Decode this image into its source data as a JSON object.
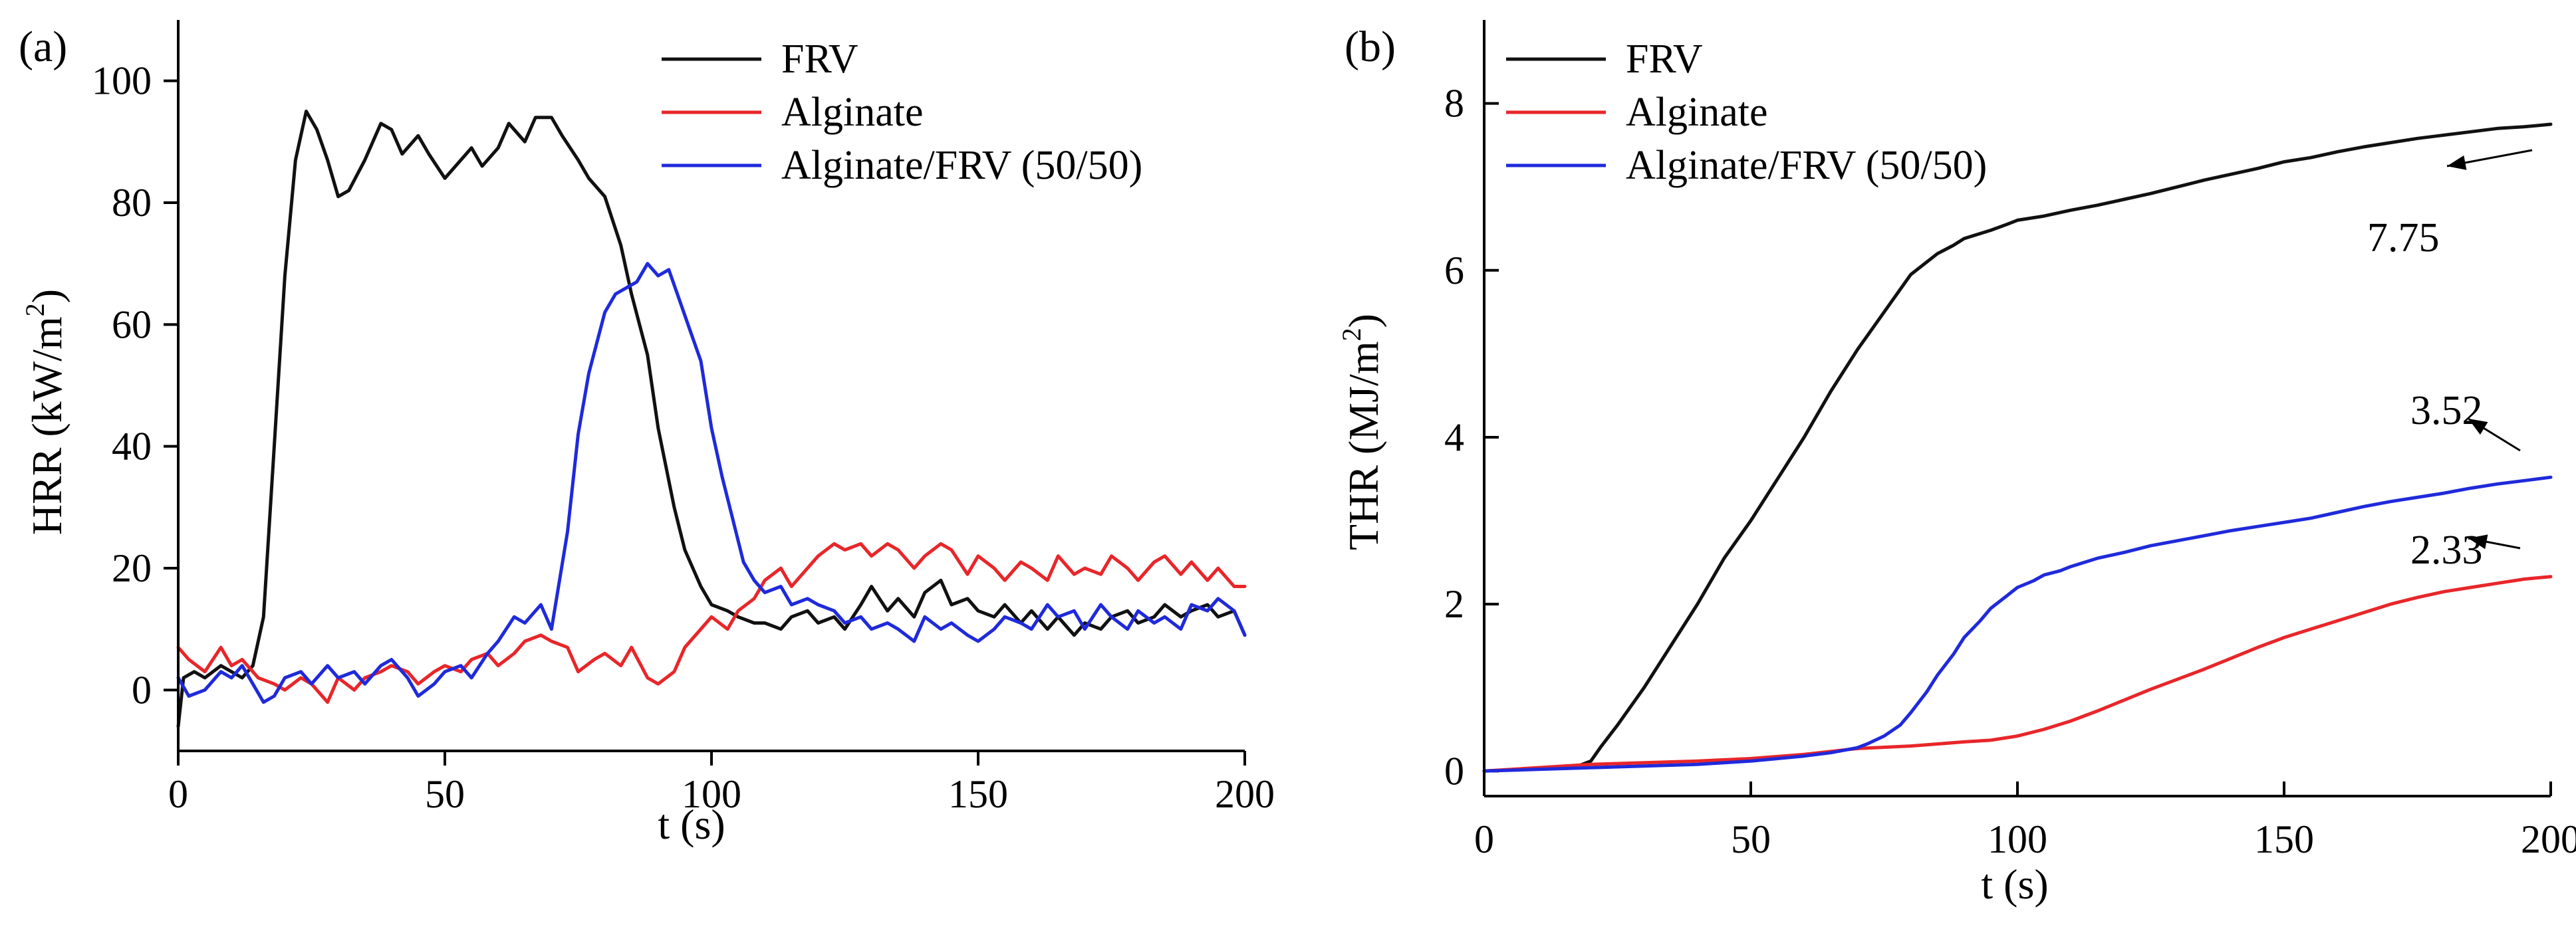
{
  "chart_data": [
    {
      "type": "line",
      "panel_label": "(a)",
      "xlabel": "t (s)",
      "ylabel": "HRR (kW/m²)",
      "ylabel_main": "HRR (kW/m",
      "ylabel_sup": "2",
      "ylabel_close": ")",
      "xlim": [
        0,
        200
      ],
      "ylim": [
        -10,
        110
      ],
      "xticks": [
        0,
        50,
        100,
        150,
        200
      ],
      "yticks": [
        0,
        20,
        40,
        60,
        80,
        100
      ],
      "legend_position": "top-center",
      "series": [
        {
          "name": "FRV",
          "color": "#111111",
          "x": [
            0,
            1,
            3,
            5,
            8,
            10,
            12,
            14,
            16,
            18,
            20,
            22,
            24,
            26,
            28,
            30,
            32,
            35,
            38,
            40,
            42,
            45,
            47,
            50,
            53,
            55,
            57,
            60,
            62,
            65,
            67,
            70,
            72,
            75,
            77,
            80,
            83,
            85,
            88,
            90,
            93,
            95,
            98,
            100,
            103,
            105,
            108,
            110,
            113,
            115,
            118,
            120,
            123,
            125,
            128,
            130,
            133,
            135,
            138,
            140,
            143,
            145,
            148,
            150,
            153,
            155,
            158,
            160,
            163,
            165,
            168,
            170,
            173,
            175,
            178,
            180,
            183,
            185,
            188,
            190,
            193,
            195,
            198,
            200
          ],
          "y": [
            -6,
            2,
            3,
            2,
            4,
            3,
            2,
            4,
            12,
            40,
            68,
            87,
            95,
            92,
            87,
            81,
            82,
            87,
            93,
            92,
            88,
            91,
            88,
            84,
            87,
            89,
            86,
            89,
            93,
            90,
            94,
            94,
            91,
            87,
            84,
            81,
            73,
            65,
            55,
            43,
            30,
            23,
            17,
            14,
            13,
            12,
            11,
            11,
            10,
            12,
            13,
            11,
            12,
            10,
            14,
            17,
            13,
            15,
            12,
            16,
            18,
            14,
            15,
            13,
            12,
            14,
            11,
            13,
            10,
            12,
            9,
            11,
            10,
            12,
            13,
            11,
            12,
            14,
            12,
            13,
            14,
            12,
            13,
            9
          ]
        },
        {
          "name": "Alginate",
          "color": "#e8262a",
          "x": [
            0,
            2,
            5,
            8,
            10,
            12,
            15,
            18,
            20,
            23,
            25,
            28,
            30,
            33,
            35,
            38,
            40,
            43,
            45,
            48,
            50,
            53,
            55,
            58,
            60,
            63,
            65,
            68,
            70,
            73,
            75,
            78,
            80,
            83,
            85,
            88,
            90,
            93,
            95,
            98,
            100,
            103,
            105,
            108,
            110,
            113,
            115,
            118,
            120,
            123,
            125,
            128,
            130,
            133,
            135,
            138,
            140,
            143,
            145,
            148,
            150,
            153,
            155,
            158,
            160,
            163,
            165,
            168,
            170,
            173,
            175,
            178,
            180,
            183,
            185,
            188,
            190,
            193,
            195,
            198,
            200
          ],
          "y": [
            7,
            5,
            3,
            7,
            4,
            5,
            2,
            1,
            0,
            2,
            1,
            -2,
            2,
            0,
            2,
            3,
            4,
            3,
            1,
            3,
            4,
            3,
            5,
            6,
            4,
            6,
            8,
            9,
            8,
            7,
            3,
            5,
            6,
            4,
            7,
            2,
            1,
            3,
            7,
            10,
            12,
            10,
            13,
            15,
            18,
            20,
            17,
            20,
            22,
            24,
            23,
            24,
            22,
            24,
            23,
            20,
            22,
            24,
            23,
            19,
            22,
            20,
            18,
            21,
            20,
            18,
            22,
            19,
            20,
            19,
            22,
            20,
            18,
            21,
            22,
            19,
            21,
            18,
            20,
            17,
            17
          ]
        },
        {
          "name": "Alginate/FRV (50/50)",
          "color": "#1f2adb",
          "x": [
            0,
            2,
            5,
            8,
            10,
            12,
            14,
            16,
            18,
            20,
            23,
            25,
            28,
            30,
            33,
            35,
            38,
            40,
            43,
            45,
            48,
            50,
            53,
            55,
            58,
            60,
            63,
            65,
            68,
            70,
            73,
            75,
            77,
            80,
            82,
            84,
            86,
            88,
            90,
            92,
            94,
            96,
            98,
            100,
            102,
            104,
            106,
            108,
            110,
            113,
            115,
            118,
            120,
            123,
            125,
            128,
            130,
            133,
            135,
            138,
            140,
            143,
            145,
            148,
            150,
            153,
            155,
            158,
            160,
            163,
            165,
            168,
            170,
            173,
            175,
            178,
            180,
            183,
            185,
            188,
            190,
            193,
            195,
            198,
            200
          ],
          "y": [
            2,
            -1,
            0,
            3,
            2,
            4,
            1,
            -2,
            -1,
            2,
            3,
            1,
            4,
            2,
            3,
            1,
            4,
            5,
            2,
            -1,
            1,
            3,
            4,
            2,
            6,
            8,
            12,
            11,
            14,
            10,
            26,
            42,
            52,
            62,
            65,
            66,
            67,
            70,
            68,
            69,
            64,
            59,
            54,
            43,
            35,
            28,
            21,
            18,
            16,
            17,
            14,
            15,
            14,
            13,
            11,
            12,
            10,
            11,
            10,
            8,
            12,
            10,
            11,
            9,
            8,
            10,
            12,
            11,
            10,
            14,
            12,
            13,
            10,
            14,
            12,
            10,
            13,
            11,
            12,
            10,
            14,
            13,
            15,
            13,
            9
          ]
        }
      ]
    },
    {
      "type": "line",
      "panel_label": "(b)",
      "xlabel": "t (s)",
      "ylabel": "THR (MJ/m²)",
      "ylabel_main": "THR (MJ/m",
      "ylabel_sup": "2",
      "ylabel_close": ")",
      "xlim": [
        0,
        200
      ],
      "ylim": [
        -0.3,
        9
      ],
      "xticks": [
        0,
        50,
        100,
        150,
        200
      ],
      "yticks": [
        0,
        2,
        4,
        6,
        8
      ],
      "legend_position": "top-left",
      "series": [
        {
          "name": "FRV",
          "color": "#111111",
          "x": [
            0,
            10,
            15,
            18,
            20,
            22,
            25,
            30,
            35,
            40,
            45,
            50,
            55,
            60,
            65,
            70,
            75,
            80,
            85,
            88,
            90,
            92,
            95,
            98,
            100,
            105,
            110,
            115,
            120,
            125,
            130,
            135,
            140,
            145,
            150,
            155,
            160,
            165,
            170,
            175,
            180,
            185,
            190,
            195,
            200
          ],
          "y": [
            0,
            0.03,
            0.05,
            0.07,
            0.12,
            0.3,
            0.55,
            1.0,
            1.5,
            2.0,
            2.55,
            3.0,
            3.5,
            4.0,
            4.55,
            5.05,
            5.5,
            5.95,
            6.2,
            6.3,
            6.38,
            6.42,
            6.48,
            6.55,
            6.6,
            6.65,
            6.72,
            6.78,
            6.85,
            6.92,
            7.0,
            7.08,
            7.15,
            7.22,
            7.3,
            7.35,
            7.42,
            7.48,
            7.53,
            7.58,
            7.62,
            7.66,
            7.7,
            7.72,
            7.75
          ]
        },
        {
          "name": "Alginate",
          "color": "#e8262a",
          "x": [
            0,
            10,
            20,
            30,
            40,
            50,
            60,
            70,
            80,
            90,
            95,
            100,
            105,
            110,
            115,
            120,
            125,
            130,
            135,
            140,
            145,
            150,
            155,
            160,
            165,
            170,
            175,
            180,
            185,
            190,
            195,
            200
          ],
          "y": [
            0,
            0.04,
            0.08,
            0.1,
            0.12,
            0.15,
            0.2,
            0.27,
            0.3,
            0.35,
            0.37,
            0.42,
            0.5,
            0.6,
            0.72,
            0.85,
            0.98,
            1.1,
            1.22,
            1.35,
            1.48,
            1.6,
            1.7,
            1.8,
            1.9,
            2.0,
            2.08,
            2.15,
            2.2,
            2.25,
            2.3,
            2.33
          ]
        },
        {
          "name": "Alginate/FRV (50/50)",
          "color": "#1f2adb",
          "x": [
            0,
            10,
            20,
            30,
            40,
            50,
            60,
            65,
            70,
            72,
            75,
            78,
            80,
            83,
            85,
            88,
            90,
            93,
            95,
            98,
            100,
            103,
            105,
            108,
            110,
            115,
            120,
            125,
            130,
            135,
            140,
            145,
            150,
            155,
            160,
            165,
            170,
            175,
            180,
            185,
            190,
            195,
            200
          ],
          "y": [
            0,
            0.02,
            0.04,
            0.06,
            0.08,
            0.12,
            0.18,
            0.22,
            0.28,
            0.33,
            0.42,
            0.55,
            0.7,
            0.95,
            1.15,
            1.4,
            1.6,
            1.8,
            1.95,
            2.1,
            2.2,
            2.28,
            2.35,
            2.4,
            2.45,
            2.55,
            2.62,
            2.7,
            2.76,
            2.82,
            2.88,
            2.93,
            2.98,
            3.03,
            3.1,
            3.17,
            3.23,
            3.28,
            3.33,
            3.39,
            3.44,
            3.48,
            3.52
          ]
        }
      ],
      "annotations": [
        {
          "text": "7.75",
          "series": "FRV",
          "value": 7.75
        },
        {
          "text": "3.52",
          "series": "Alginate/FRV (50/50)",
          "value": 3.52
        },
        {
          "text": "2.33",
          "series": "Alginate",
          "value": 2.33
        }
      ]
    }
  ]
}
